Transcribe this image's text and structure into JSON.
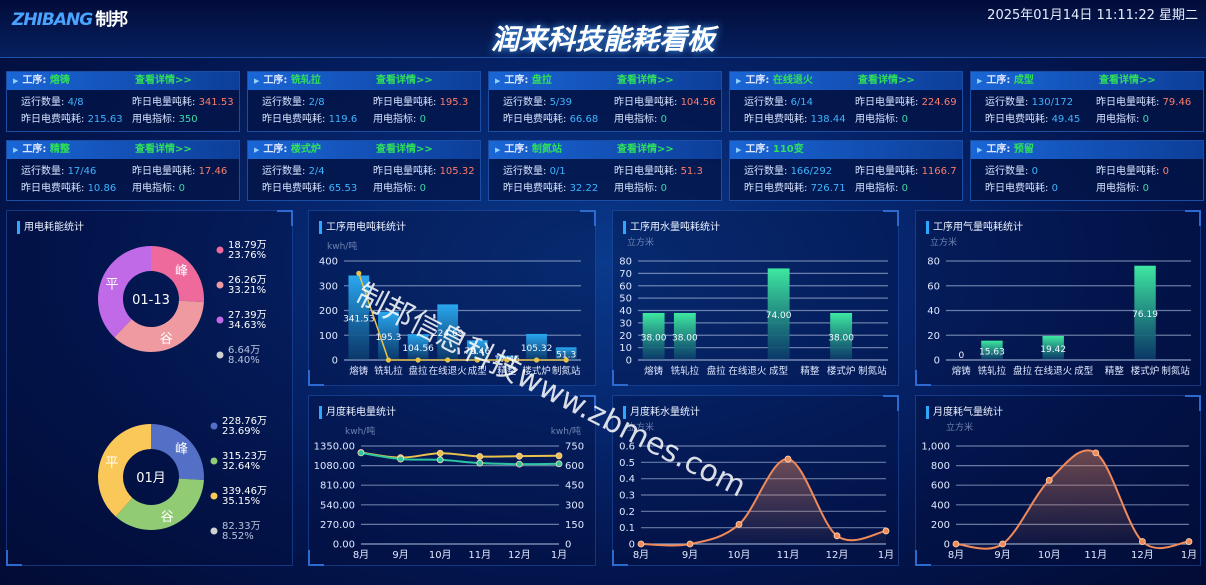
{
  "header": {
    "logo": "ZHIBANG",
    "logo_cn": "制邦",
    "title": "润来科技能耗看板",
    "datetime": "2025年01月14日 11:11:22 星期二"
  },
  "labels": {
    "process": "工序: ",
    "detail": "查看详情>>",
    "run": "运行数量: ",
    "elec": "昨日电量吨耗: ",
    "fee": "昨日电费吨耗: ",
    "index": "用电指标: "
  },
  "cards": [
    {
      "name": "熔铸",
      "run": "4/8",
      "elec": "341.53",
      "fee": "215.63",
      "index": "350",
      "detail": true
    },
    {
      "name": "铣轧拉",
      "run": "2/8",
      "elec": "195.3",
      "fee": "119.6",
      "index": "0",
      "detail": true
    },
    {
      "name": "盘拉",
      "run": "5/39",
      "elec": "104.56",
      "fee": "66.68",
      "index": "0",
      "detail": true
    },
    {
      "name": "在线退火",
      "run": "6/14",
      "elec": "224.69",
      "fee": "138.44",
      "index": "0",
      "detail": true
    },
    {
      "name": "成型",
      "run": "130/172",
      "elec": "79.46",
      "fee": "49.45",
      "index": "0",
      "detail": true
    },
    {
      "name": "精整",
      "run": "17/46",
      "elec": "17.46",
      "fee": "10.86",
      "index": "0",
      "detail": true
    },
    {
      "name": "楼式炉",
      "run": "2/4",
      "elec": "105.32",
      "fee": "65.53",
      "index": "0",
      "detail": true
    },
    {
      "name": "制氮站",
      "run": "0/1",
      "elec": "51.3",
      "fee": "32.22",
      "index": "0",
      "detail": true
    },
    {
      "name": "110变",
      "run": "166/292",
      "elec": "1166.7",
      "fee": "726.71",
      "index": "0",
      "detail": false
    },
    {
      "name": "预留",
      "run": "0",
      "elec": "0",
      "fee": "0",
      "index": "0",
      "detail": false
    }
  ],
  "panels": {
    "donut": "用电耗能统计",
    "p_elec": "工序用电吨耗统计",
    "p_water": "工序用水量吨耗统计",
    "p_gas": "工序用气量吨耗统计",
    "m_elec": "月度耗电量统计",
    "m_water": "月度耗水量统计",
    "m_gas": "月度耗气量统计"
  },
  "watermark": "制邦信息科技www.zbmes.com",
  "chart_data": [
    {
      "type": "bar",
      "unit": "kwh/吨",
      "categories": [
        "熔铸",
        "铣轧拉",
        "盘拉",
        "在线退火",
        "成型",
        "精整",
        "楼式炉",
        "制氮站"
      ],
      "values": [
        341.53,
        195.3,
        104.56,
        224.69,
        79.46,
        17.46,
        105.32,
        51.3
      ],
      "labels": [
        "341.53",
        "195.3",
        "104.56",
        "224.69",
        "79.46",
        "17.46",
        "105.32",
        "51.3"
      ],
      "line": [
        350,
        0,
        0,
        0,
        0,
        0,
        0,
        0
      ],
      "ylim": [
        0,
        400
      ],
      "yticks": [
        "0",
        "100",
        "200",
        "300",
        "400"
      ],
      "bar_color": "#2aa8f0",
      "line_color": "#e8c24a",
      "grid": true
    },
    {
      "type": "bar",
      "unit": "立方米",
      "categories": [
        "熔铸",
        "铣轧拉",
        "盘拉",
        "在线退火",
        "成型",
        "精整",
        "楼式炉",
        "制氮站"
      ],
      "values": [
        38,
        38,
        null,
        null,
        74,
        null,
        38,
        null
      ],
      "labels": [
        "38.00",
        "38.00",
        "",
        "",
        "74.00",
        "",
        "38.00",
        ""
      ],
      "ylim": [
        0,
        80
      ],
      "yticks": [
        "0",
        "10",
        "20",
        "30",
        "40",
        "50",
        "60",
        "70",
        "80"
      ],
      "bar_color": "#3ee8a0",
      "grid": true
    },
    {
      "type": "bar",
      "unit": "立方米",
      "categories": [
        "熔铸",
        "铣轧拉",
        "盘拉",
        "在线退火",
        "成型",
        "精整",
        "楼式炉",
        "制氮站"
      ],
      "values": [
        0,
        15.63,
        null,
        19.42,
        null,
        null,
        76.19,
        null
      ],
      "labels": [
        "0",
        "15.63",
        "",
        "19.42",
        "",
        "",
        "76.19",
        ""
      ],
      "ylim": [
        0,
        80
      ],
      "yticks": [
        "0",
        "20",
        "40",
        "60",
        "80"
      ],
      "bar_color": "#3ee8a0",
      "grid": true
    },
    {
      "type": "line",
      "unit_left": "kwh/吨",
      "unit_right": "kwh/吨",
      "x": [
        "8月",
        "9月",
        "10月",
        "11月",
        "12月",
        "1月"
      ],
      "series": [
        {
          "values": [
            1260,
            1190,
            1250,
            1205,
            1210,
            1215
          ],
          "axis": "left",
          "color": "#e8c24a"
        },
        {
          "values": [
            1255,
            1170,
            1160,
            1115,
            1100,
            1105
          ],
          "axis": "left",
          "color": "#2ec4a0"
        }
      ],
      "ylim": [
        0,
        1350
      ],
      "yticks": [
        "0.00",
        "270.00",
        "540.00",
        "810.00",
        "1080.00",
        "1350.00"
      ],
      "ylim_right": [
        0,
        750
      ],
      "yticks_right": [
        "0",
        "150",
        "300",
        "450",
        "600",
        "750"
      ],
      "grid": true
    },
    {
      "type": "area",
      "unit": "立方米",
      "x": [
        "8月",
        "9月",
        "10月",
        "11月",
        "12月",
        "1月"
      ],
      "values": [
        0,
        0,
        0.12,
        0.52,
        0.05,
        0.08
      ],
      "ylim": [
        0,
        0.6
      ],
      "yticks": [
        "0",
        "0.1",
        "0.2",
        "0.3",
        "0.4",
        "0.5",
        "0.6"
      ],
      "color": "#f08a5a",
      "grid": true
    },
    {
      "type": "area",
      "unit": "立方米",
      "x": [
        "8月",
        "9月",
        "10月",
        "11月",
        "12月",
        "1月"
      ],
      "values": [
        0,
        0,
        650,
        930,
        25,
        25
      ],
      "ylim": [
        0,
        1000
      ],
      "yticks": [
        "0",
        "200",
        "400",
        "600",
        "800",
        "1,000"
      ],
      "color": "#f08a5a",
      "grid": true
    },
    {
      "type": "pie",
      "center": "01-13",
      "slices": [
        {
          "name": "峰",
          "value": "18.79万",
          "pct": "23.76%",
          "color": "#ef6a9c"
        },
        {
          "name": "谷",
          "value": "26.26万",
          "pct": "33.21%",
          "color": "#ef9aa0"
        },
        {
          "name": "平",
          "value": "27.39万",
          "pct": "34.63%",
          "color": "#c06ae8"
        },
        {
          "name": "",
          "value": "6.64万",
          "pct": "8.40%",
          "color": "#d0d0d0"
        }
      ]
    },
    {
      "type": "pie",
      "center": "01月",
      "slices": [
        {
          "name": "峰",
          "value": "228.76万",
          "pct": "23.69%",
          "color": "#5470c6"
        },
        {
          "name": "谷",
          "value": "315.23万",
          "pct": "32.64%",
          "color": "#91cc75"
        },
        {
          "name": "平",
          "value": "339.46万",
          "pct": "35.15%",
          "color": "#fac858"
        },
        {
          "name": "",
          "value": "82.33万",
          "pct": "8.52%",
          "color": "#d0d0d0"
        }
      ]
    }
  ]
}
